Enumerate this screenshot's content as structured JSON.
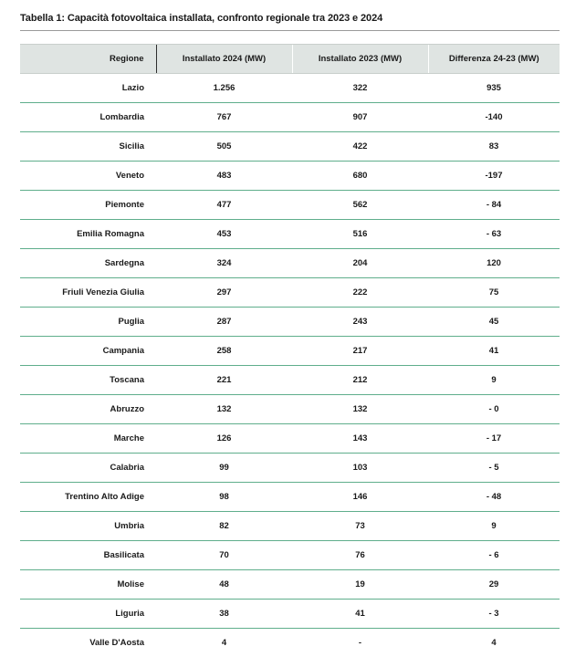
{
  "caption": "Tabella 1: Capacità fotovoltaica installata, confronto regionale tra 2023 e 2024",
  "table": {
    "headers": [
      "Regione",
      "Installato 2024 (MW)",
      "Installato 2023 (MW)",
      "Differenza 24-23 (MW)"
    ],
    "rows": [
      [
        "Lazio",
        "1.256",
        "322",
        "935"
      ],
      [
        "Lombardia",
        "767",
        "907",
        "-140"
      ],
      [
        "Sicilia",
        "505",
        "422",
        "83"
      ],
      [
        "Veneto",
        "483",
        "680",
        "-197"
      ],
      [
        "Piemonte",
        "477",
        "562",
        "- 84"
      ],
      [
        "Emilia Romagna",
        "453",
        "516",
        "- 63"
      ],
      [
        "Sardegna",
        "324",
        "204",
        "120"
      ],
      [
        "Friuli Venezia Giulia",
        "297",
        "222",
        "75"
      ],
      [
        "Puglia",
        "287",
        "243",
        "45"
      ],
      [
        "Campania",
        "258",
        "217",
        "41"
      ],
      [
        "Toscana",
        "221",
        "212",
        "9"
      ],
      [
        "Abruzzo",
        "132",
        "132",
        "- 0"
      ],
      [
        "Marche",
        "126",
        "143",
        "- 17"
      ],
      [
        "Calabria",
        "99",
        "103",
        "- 5"
      ],
      [
        "Trentino Alto Adige",
        "98",
        "146",
        "- 48"
      ],
      [
        "Umbria",
        "82",
        "73",
        "9"
      ],
      [
        "Basilicata",
        "70",
        "76",
        "- 6"
      ],
      [
        "Molise",
        "48",
        "19",
        "29"
      ],
      [
        "Liguria",
        "38",
        "41",
        "- 3"
      ],
      [
        "Valle D'Aosta",
        "4",
        "-",
        "4"
      ]
    ]
  },
  "colors": {
    "header_bg": "#dfe4e2",
    "row_divider": "#5fae8c"
  }
}
